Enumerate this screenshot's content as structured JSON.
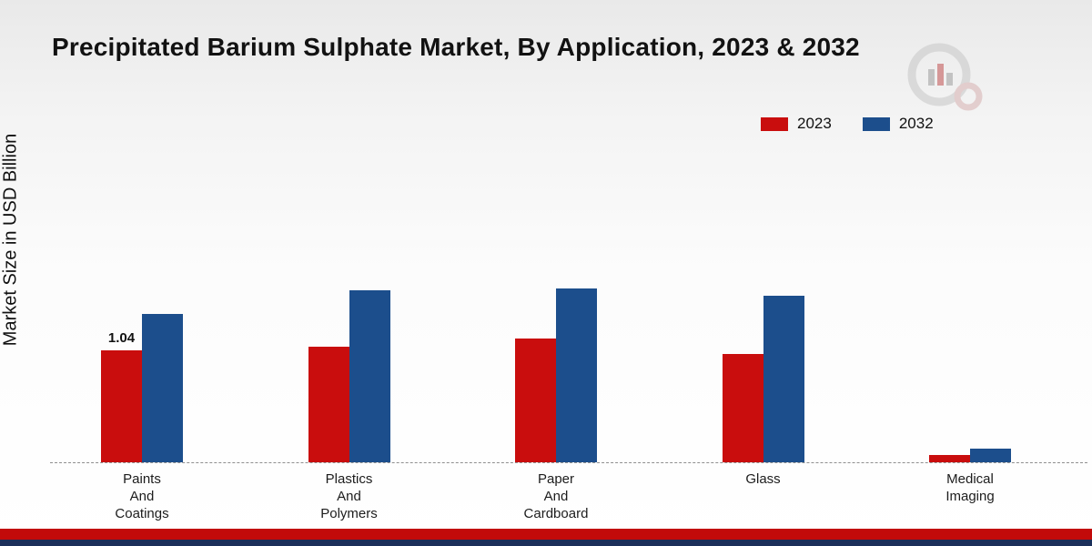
{
  "title": "Precipitated Barium Sulphate Market, By Application, 2023 & 2032",
  "ylabel": "Market Size in USD Billion",
  "legend": [
    {
      "label": "2023",
      "color": "#c90d0d"
    },
    {
      "label": "2032",
      "color": "#1c4e8c"
    }
  ],
  "colors": {
    "bar_2023": "#c90d0d",
    "bar_2032": "#1c4e8c",
    "footer_red": "#c20a0a",
    "footer_navy": "#1b2f5a",
    "baseline": "#8f8f8f"
  },
  "logo_name": "market-research-future-logo",
  "chart_data": {
    "type": "bar",
    "categories": [
      "Paints\nAnd\nCoatings",
      "Plastics\nAnd\nPolymers",
      "Paper\nAnd\nCardboard",
      "Glass",
      "Medical\nImaging"
    ],
    "series": [
      {
        "name": "2023",
        "color": "#c90d0d",
        "values": [
          1.04,
          1.08,
          1.15,
          1.01,
          0.07
        ]
      },
      {
        "name": "2032",
        "color": "#1c4e8c",
        "values": [
          1.38,
          1.6,
          1.62,
          1.55,
          0.13
        ]
      }
    ],
    "data_labels": [
      {
        "series_index": 0,
        "category_index": 0,
        "text": "1.04"
      }
    ],
    "title": "Precipitated Barium Sulphate Market, By Application, 2023 & 2032",
    "xlabel": "",
    "ylabel": "Market Size in USD Billion",
    "ylim": [
      0,
      1.8
    ],
    "grid": false,
    "legend_position": "top-right",
    "baseline_style": "dashed"
  }
}
